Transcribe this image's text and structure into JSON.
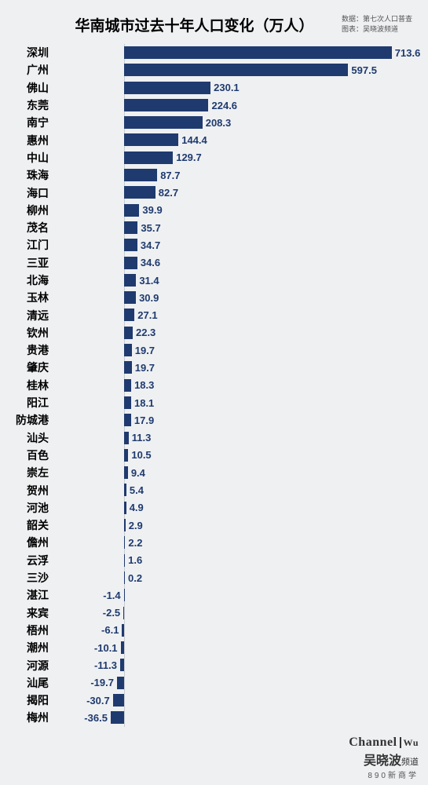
{
  "title": "华南城市过去十年人口变化（万人）",
  "source_line1": "数据：第七次人口普查",
  "source_line2": "图表：吴晓波频道",
  "chart": {
    "type": "bar-horizontal",
    "bar_color": "#1f3a6e",
    "value_color": "#1f3a6e",
    "label_color": "#000000",
    "background": "#eef0f2",
    "axis_color": "#c8ccd0",
    "zero_offset_pct": 19.0,
    "scale_pct_per_unit": 0.1026,
    "rows": [
      {
        "city": "深圳",
        "value": 713.6
      },
      {
        "city": "广州",
        "value": 597.5
      },
      {
        "city": "佛山",
        "value": 230.1
      },
      {
        "city": "东莞",
        "value": 224.6
      },
      {
        "city": "南宁",
        "value": 208.3
      },
      {
        "city": "惠州",
        "value": 144.4
      },
      {
        "city": "中山",
        "value": 129.7
      },
      {
        "city": "珠海",
        "value": 87.7
      },
      {
        "city": "海口",
        "value": 82.7
      },
      {
        "city": "柳州",
        "value": 39.9
      },
      {
        "city": "茂名",
        "value": 35.7
      },
      {
        "city": "江门",
        "value": 34.7
      },
      {
        "city": "三亚",
        "value": 34.6
      },
      {
        "city": "北海",
        "value": 31.4
      },
      {
        "city": "玉林",
        "value": 30.9
      },
      {
        "city": "清远",
        "value": 27.1
      },
      {
        "city": "钦州",
        "value": 22.3
      },
      {
        "city": "贵港",
        "value": 19.7
      },
      {
        "city": "肇庆",
        "value": 19.7
      },
      {
        "city": "桂林",
        "value": 18.3
      },
      {
        "city": "阳江",
        "value": 18.1
      },
      {
        "city": "防城港",
        "value": 17.9
      },
      {
        "city": "汕头",
        "value": 11.3
      },
      {
        "city": "百色",
        "value": 10.5
      },
      {
        "city": "崇左",
        "value": 9.4
      },
      {
        "city": "贺州",
        "value": 5.4
      },
      {
        "city": "河池",
        "value": 4.9
      },
      {
        "city": "韶关",
        "value": 2.9
      },
      {
        "city": "儋州",
        "value": 2.2
      },
      {
        "city": "云浮",
        "value": 1.6
      },
      {
        "city": "三沙",
        "value": 0.2
      },
      {
        "city": "湛江",
        "value": -1.4
      },
      {
        "city": "来宾",
        "value": -2.5
      },
      {
        "city": "梧州",
        "value": -6.1
      },
      {
        "city": "潮州",
        "value": -10.1
      },
      {
        "city": "河源",
        "value": -11.3
      },
      {
        "city": "汕尾",
        "value": -19.7
      },
      {
        "city": "揭阳",
        "value": -30.7
      },
      {
        "city": "梅州",
        "value": -36.5
      }
    ]
  },
  "footer": {
    "channel_en": "Channel",
    "channel_wu": "Wu",
    "brand_cn": "吴晓波",
    "brand_suffix": "频道",
    "subtitle": "890新商学"
  }
}
